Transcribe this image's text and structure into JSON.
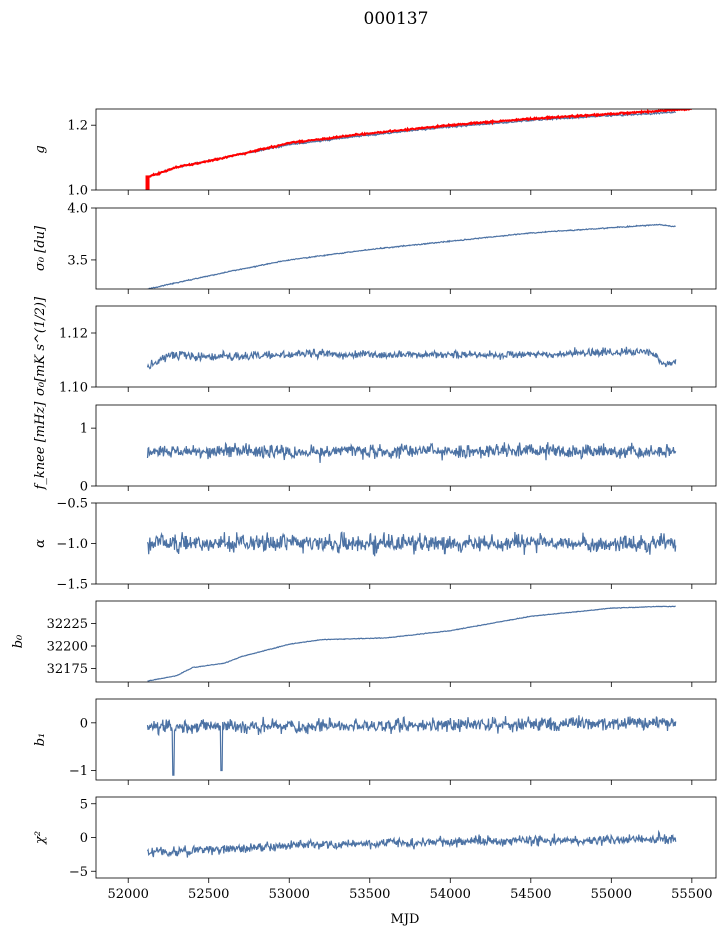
{
  "figure": {
    "title": "000137",
    "xlabel": "MJD"
  },
  "chart_data": {
    "type": "line",
    "shared_x": true,
    "xlim": [
      51800,
      55650
    ],
    "xticks": [
      52000,
      52500,
      53000,
      53500,
      54000,
      54500,
      55000,
      55500
    ],
    "title": "000137",
    "xlabel": "MJD",
    "colors": {
      "series": "#4c72a4",
      "highlight": "#ff0000"
    },
    "panels": [
      {
        "id": "g",
        "ylabel": "g",
        "ylim": [
          1.0,
          1.25
        ],
        "yticks": [
          1.0,
          1.2
        ],
        "series": [
          {
            "color": "#4c72a4",
            "x_range": [
              52120,
              55400
            ],
            "noise": 0.002,
            "points": [
              [
                52120,
                1.04
              ],
              [
                52300,
                1.07
              ],
              [
                52600,
                1.1
              ],
              [
                53000,
                1.14
              ],
              [
                53500,
                1.17
              ],
              [
                54000,
                1.195
              ],
              [
                54500,
                1.215
              ],
              [
                55000,
                1.23
              ],
              [
                55400,
                1.24
              ]
            ]
          },
          {
            "color": "#ff0000",
            "x_range": [
              52120,
              55500
            ],
            "noise": 0.002,
            "points": [
              [
                52120,
                1.04
              ],
              [
                52300,
                1.07
              ],
              [
                52600,
                1.1
              ],
              [
                53000,
                1.145
              ],
              [
                53500,
                1.175
              ],
              [
                54000,
                1.2
              ],
              [
                54500,
                1.22
              ],
              [
                55000,
                1.235
              ],
              [
                55500,
                1.25
              ]
            ],
            "spike": {
              "x": 52120,
              "y_from": 1.0,
              "y_to": 1.045
            }
          }
        ]
      },
      {
        "id": "sigma0-du",
        "ylabel": "σ₀ [du]",
        "ylim": [
          3.22,
          4.0
        ],
        "yticks": [
          3.5,
          4.0
        ],
        "series": [
          {
            "color": "#4c72a4",
            "x_range": [
              52120,
              55400
            ],
            "noise": 0.004,
            "points": [
              [
                52120,
                3.22
              ],
              [
                52300,
                3.28
              ],
              [
                52600,
                3.38
              ],
              [
                53000,
                3.5
              ],
              [
                53500,
                3.6
              ],
              [
                54000,
                3.68
              ],
              [
                54500,
                3.76
              ],
              [
                55000,
                3.81
              ],
              [
                55300,
                3.84
              ],
              [
                55400,
                3.82
              ]
            ]
          }
        ]
      },
      {
        "id": "sigma0-mks",
        "ylabel": "σ₀[mK s^(1/2)]",
        "ylim": [
          1.1,
          1.13
        ],
        "yticks": [
          1.1,
          1.12
        ],
        "series": [
          {
            "color": "#4c72a4",
            "x_range": [
              52120,
              55400
            ],
            "noise": 0.0012,
            "points": [
              [
                52120,
                1.107
              ],
              [
                52250,
                1.112
              ],
              [
                52500,
                1.111
              ],
              [
                53000,
                1.112
              ],
              [
                53500,
                1.112
              ],
              [
                54000,
                1.112
              ],
              [
                54500,
                1.112
              ],
              [
                55000,
                1.113
              ],
              [
                55250,
                1.113
              ],
              [
                55330,
                1.108
              ],
              [
                55400,
                1.109
              ]
            ]
          }
        ]
      },
      {
        "id": "fknee",
        "ylabel": "f_knee [mHz]",
        "ylim": [
          0,
          1.4
        ],
        "yticks": [
          0,
          1
        ],
        "series": [
          {
            "color": "#4c72a4",
            "x_range": [
              52120,
              55400
            ],
            "noise": 0.1,
            "points": [
              [
                52120,
                0.6
              ],
              [
                55400,
                0.6
              ]
            ]
          }
        ]
      },
      {
        "id": "alpha",
        "ylabel": "α",
        "ylim": [
          -1.5,
          -0.5
        ],
        "yticks": [
          -1.5,
          -1.0,
          -0.5
        ],
        "series": [
          {
            "color": "#4c72a4",
            "x_range": [
              52120,
              55400
            ],
            "noise": 0.09,
            "points": [
              [
                52120,
                -1.0
              ],
              [
                55400,
                -1.0
              ]
            ]
          }
        ]
      },
      {
        "id": "b0",
        "ylabel": "b₀",
        "ylim": [
          32160,
          32250
        ],
        "yticks": [
          32175,
          32200,
          32225
        ],
        "series": [
          {
            "color": "#4c72a4",
            "x_range": [
              52120,
              55400
            ],
            "noise": 0.3,
            "points": [
              [
                52120,
                32161
              ],
              [
                52300,
                32167
              ],
              [
                52400,
                32176
              ],
              [
                52600,
                32181
              ],
              [
                52700,
                32188
              ],
              [
                53000,
                32202
              ],
              [
                53200,
                32207
              ],
              [
                53600,
                32209
              ],
              [
                54000,
                32217
              ],
              [
                54500,
                32233
              ],
              [
                55000,
                32242
              ],
              [
                55300,
                32244
              ],
              [
                55400,
                32244
              ]
            ]
          }
        ]
      },
      {
        "id": "b1",
        "ylabel": "b₁",
        "ylim": [
          -1.2,
          0.5
        ],
        "yticks": [
          -1,
          0
        ],
        "series": [
          {
            "color": "#4c72a4",
            "x_range": [
              52120,
              55400
            ],
            "noise": 0.12,
            "points": [
              [
                52120,
                -0.1
              ],
              [
                55400,
                0.0
              ]
            ],
            "dips": [
              [
                52280,
                -1.1
              ],
              [
                52580,
                -1.0
              ]
            ]
          }
        ]
      },
      {
        "id": "chi2",
        "ylabel": "χ²",
        "ylim": [
          -6,
          6
        ],
        "yticks": [
          -5,
          0,
          5
        ],
        "series": [
          {
            "color": "#4c72a4",
            "x_range": [
              52120,
              55400
            ],
            "noise": 0.6,
            "points": [
              [
                52120,
                -2.2
              ],
              [
                52500,
                -1.8
              ],
              [
                53000,
                -1.2
              ],
              [
                54000,
                -0.6
              ],
              [
                55000,
                -0.3
              ],
              [
                55400,
                -0.3
              ]
            ]
          }
        ]
      }
    ]
  }
}
